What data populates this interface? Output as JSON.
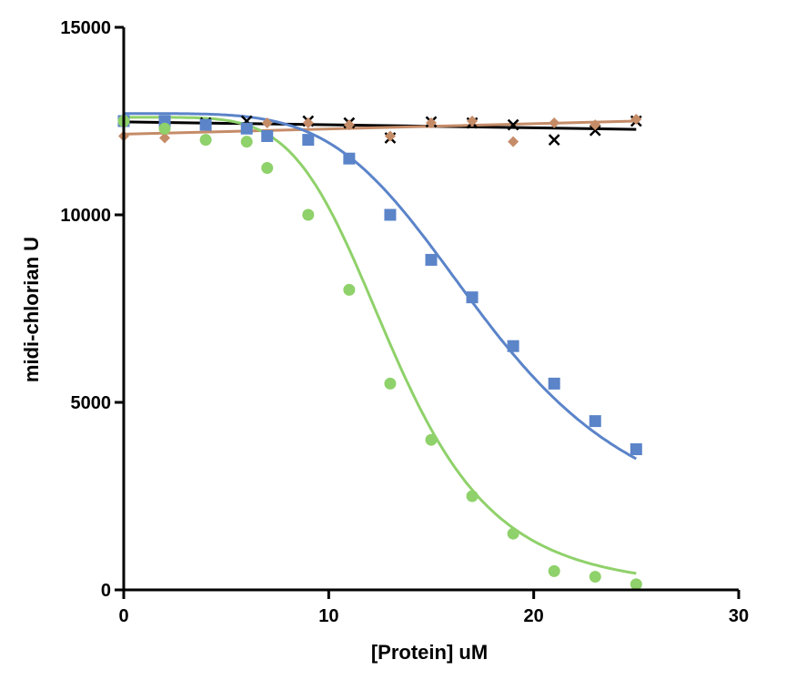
{
  "chart_data": {
    "type": "scatter",
    "title": "",
    "xlabel": "[Protein] uM",
    "ylabel": "midi-chlorian U",
    "xlim": [
      0,
      30
    ],
    "ylim": [
      0,
      15000
    ],
    "xticks": [
      0,
      10,
      20,
      30
    ],
    "yticks": [
      0,
      5000,
      10000,
      15000
    ],
    "xtick_labels": [
      "0",
      "10",
      "20",
      "30"
    ],
    "ytick_labels": [
      "0",
      "5000",
      "10000",
      "15000"
    ],
    "grid": false,
    "legend": "none",
    "series": [
      {
        "marker": "x",
        "color": "#000000",
        "fit": "flat",
        "fit_values": [
          12480,
          12280
        ],
        "x": [
          0,
          2,
          4,
          6,
          7,
          9,
          11,
          13,
          15,
          17,
          19,
          21,
          23,
          25
        ],
        "y": [
          12500,
          12450,
          12450,
          12500,
          12100,
          12500,
          12450,
          12050,
          12480,
          12450,
          12400,
          12000,
          12250,
          12500
        ]
      },
      {
        "marker": "diamond",
        "color": "#c58c68",
        "fit": "flat",
        "fit_values": [
          12150,
          12500
        ],
        "x": [
          0,
          2,
          4,
          6,
          7,
          9,
          11,
          13,
          15,
          17,
          19,
          21,
          23,
          25
        ],
        "y": [
          12100,
          12050,
          12400,
          12300,
          12450,
          12450,
          12400,
          12100,
          12450,
          12500,
          11950,
          12450,
          12400,
          12550
        ]
      },
      {
        "marker": "square",
        "color": "#5b84c9",
        "fit": "sigmoid",
        "fit_params": {
          "top": 12700,
          "bottom": 1500,
          "ec50": 17.8,
          "hill": 4.5
        },
        "x": [
          0,
          2,
          4,
          6,
          7,
          9,
          11,
          13,
          15,
          17,
          19,
          21,
          23,
          25
        ],
        "y": [
          12500,
          12500,
          12400,
          12300,
          12100,
          12000,
          11500,
          10000,
          8800,
          7800,
          6500,
          5500,
          4500,
          3750
        ]
      },
      {
        "marker": "circle",
        "color": "#8fd16a",
        "fit": "sigmoid",
        "fit_params": {
          "top": 12600,
          "bottom": 0,
          "ec50": 13.2,
          "hill": 5.2
        },
        "x": [
          0,
          2,
          4,
          6,
          7,
          9,
          11,
          13,
          15,
          17,
          19,
          21,
          23,
          25
        ],
        "y": [
          12500,
          12300,
          12000,
          11950,
          11250,
          10000,
          8000,
          5500,
          4000,
          2500,
          1500,
          500,
          350,
          150
        ]
      }
    ]
  }
}
